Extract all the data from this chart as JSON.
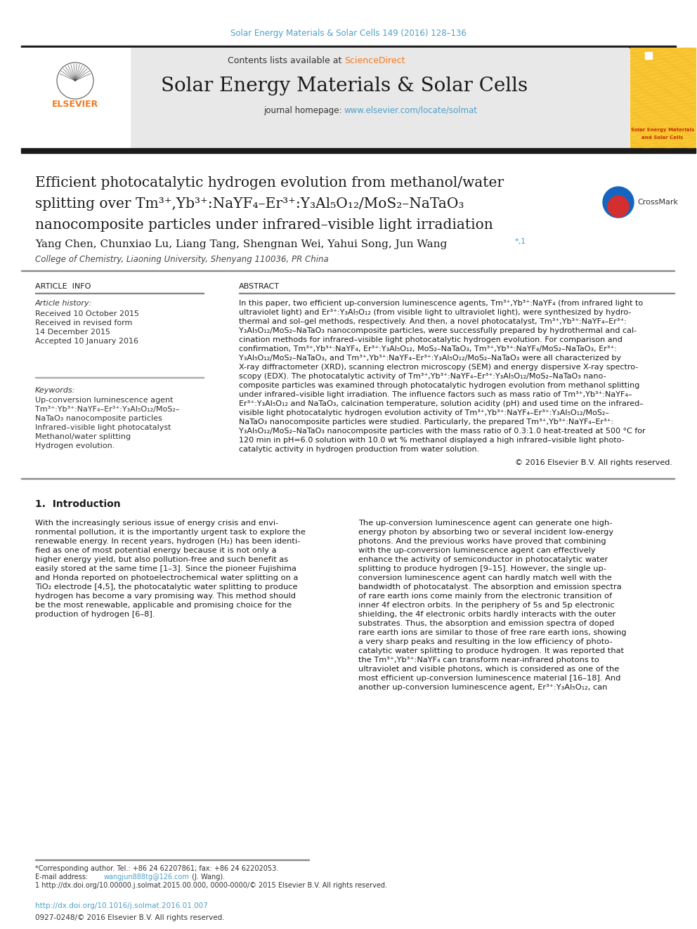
{
  "page_bg": "#ffffff",
  "top_citation": "Solar Energy Materials & Solar Cells 149 (2016) 128–136",
  "top_citation_color": "#4fa0c8",
  "header_bg": "#e8e8e8",
  "sciencedirect_color": "#f47920",
  "journal_title": "Solar Energy Materials & Solar Cells",
  "journal_homepage_url": "www.elsevier.com/locate/solmat",
  "journal_homepage_color": "#4fa0c8",
  "thick_bar_color": "#1a1a1a",
  "article_title_line1": "Efficient photocatalytic hydrogen evolution from methanol/water",
  "article_title_line2": "splitting over Tm³⁺,Yb³⁺:NaYF₄–Er³⁺:Y₃Al₅O₁₂/MoS₂–NaTaO₃",
  "article_title_line3": "nanocomposite particles under infrared–visible light irradiation",
  "authors": "Yang Chen, Chunxiao Lu, Liang Tang, Shengnan Wei, Yahui Song, Jun Wang",
  "author_asterisk": "*,1",
  "affiliation": "College of Chemistry, Liaoning University, Shenyang 110036, PR China",
  "article_info_title": "ARTICLE  INFO",
  "abstract_title": "ABSTRACT",
  "history_label": "Article history:",
  "history_entries": [
    "Received 10 October 2015",
    "Received in revised form",
    "14 December 2015",
    "Accepted 10 January 2016"
  ],
  "keywords_label": "Keywords:",
  "keywords_entries": [
    "Up-conversion luminescence agent",
    "Tm³⁺:Yb³⁺:NaYF₄–Er³⁺:Y₃Al₅O₁₂/MoS₂–",
    "NaTaO₃ nanocomposite particles",
    "Infrared–visible light photocatalyst",
    "Methanol/water splitting",
    "Hydrogen evolution."
  ],
  "abstract_lines": [
    "In this paper, two efficient up-conversion luminescence agents, Tm³⁺,Yb³⁺:NaYF₄ (from infrared light to",
    "ultraviolet light) and Er³⁺:Y₃Al₅O₁₂ (from visible light to ultraviolet light), were synthesized by hydro-",
    "thermal and sol–gel methods, respectively. And then, a novel photocatalyst, Tm³⁺,Yb³⁺:NaYF₄–Er³⁺:",
    "Y₃Al₅O₁₂/MoS₂–NaTaO₃ nanocomposite particles, were successfully prepared by hydrothermal and cal-",
    "cination methods for infrared–visible light photocatalytic hydrogen evolution. For comparison and",
    "confirmation, Tm³⁺,Yb³⁺:NaYF₄, Er³⁺:Y₃Al₅O₁₂, MoS₂–NaTaO₃, Tm³⁺,Yb³⁺:NaYF₄/MoS₂–NaTaO₃, Er³⁺:",
    "Y₃Al₅O₁₂/MoS₂–NaTaO₃, and Tm³⁺,Yb³⁺:NaYF₄–Er³⁺:Y₃Al₅O₁₂/MoS₂–NaTaO₃ were all characterized by",
    "X-ray diffractometer (XRD), scanning electron microscopy (SEM) and energy dispersive X-ray spectro-",
    "scopy (EDX). The photocatalytic activity of Tm³⁺,Yb³⁺:NaYF₄–Er³⁺:Y₃Al₅O₁₂/MoS₂–NaTaO₃ nano-",
    "composite particles was examined through photocatalytic hydrogen evolution from methanol splitting",
    "under infrared–visible light irradiation. The influence factors such as mass ratio of Tm³⁺,Yb³⁺:NaYF₄–",
    "Er³⁺:Y₃Al₅O₁₂ and NaTaO₃, calcination temperature, solution acidity (pH) and used time on the infrared–",
    "visible light photocatalytic hydrogen evolution activity of Tm³⁺,Yb³⁺:NaYF₄–Er³⁺:Y₃Al₅O₁₂/MoS₂–",
    "NaTaO₃ nanocomposite particles were studied. Particularly, the prepared Tm³⁺,Yb³⁺:NaYF₄–Er³⁺:",
    "Y₃Al₅O₁₂/MoS₂–NaTaO₃ nanocomposite particles with the mass ratio of 0.3:1.0 heat-treated at 500 °C for",
    "120 min in pH=6.0 solution with 10.0 wt % methanol displayed a high infrared–visible light photo-",
    "catalytic activity in hydrogen production from water solution."
  ],
  "copyright": "© 2016 Elsevier B.V. All rights reserved.",
  "intro_title": "1.  Introduction",
  "intro1_lines": [
    "With the increasingly serious issue of energy crisis and envi-",
    "ronmental pollution, it is the importantly urgent task to explore the",
    "renewable energy. In recent years, hydrogen (H₂) has been identi-",
    "fied as one of most potential energy because it is not only a",
    "higher energy yield, but also pollution-free and such benefit as",
    "easily stored at the same time [1–3]. Since the pioneer Fujishima",
    "and Honda reported on photoelectrochemical water splitting on a",
    "TiO₂ electrode [4,5], the photocatalytic water splitting to produce",
    "hydrogen has become a vary promising way. This method should",
    "be the most renewable, applicable and promising choice for the",
    "production of hydrogen [6–8]."
  ],
  "intro2_lines": [
    "The up-conversion luminescence agent can generate one high-",
    "energy photon by absorbing two or several incident low-energy",
    "photons. And the previous works have proved that combining",
    "with the up-conversion luminescence agent can effectively",
    "enhance the activity of semiconductor in photocatalytic water",
    "splitting to produce hydrogen [9–15]. However, the single up-",
    "conversion luminescence agent can hardly match well with the",
    "bandwidth of photocatalyst. The absorption and emission spectra",
    "of rare earth ions come mainly from the electronic transition of",
    "inner 4f electron orbits. In the periphery of 5s and 5p electronic",
    "shielding, the 4f electronic orbits hardly interacts with the outer",
    "substrates. Thus, the absorption and emission spectra of doped",
    "rare earth ions are similar to those of free rare earth ions, showing",
    "a very sharp peaks and resulting in the low efficiency of photo-",
    "catalytic water splitting to produce hydrogen. It was reported that",
    "the Tm³⁺,Yb³⁺:NaYF₄ can transform near-infrared photons to",
    "ultraviolet and visible photons, which is considered as one of the",
    "most efficient up-conversion luminescence material [16–18]. And",
    "another up-conversion luminescence agent, Er³⁺:Y₃Al₅O₁₂, can"
  ],
  "footnote1": "*Corresponding author. Tel.: +86 24 62207861; fax: +86 24 62202053.",
  "footnote2_pre": "E-mail address: ",
  "footnote2_link": "wangjun888tg@126.com",
  "footnote2_post": " (J. Wang).",
  "footnote3": "1 http://dx.doi.org/10.00000.j.solmat.2015.00.000, 0000-0000/© 2015 Elsevier B.V. All rights reserved.",
  "doi_text": "http://dx.doi.org/10.1016/j.solmat.2016.01.007",
  "doi_color": "#4fa0c8",
  "issn_text": "0927-0248/© 2016 Elsevier B.V. All rights reserved."
}
